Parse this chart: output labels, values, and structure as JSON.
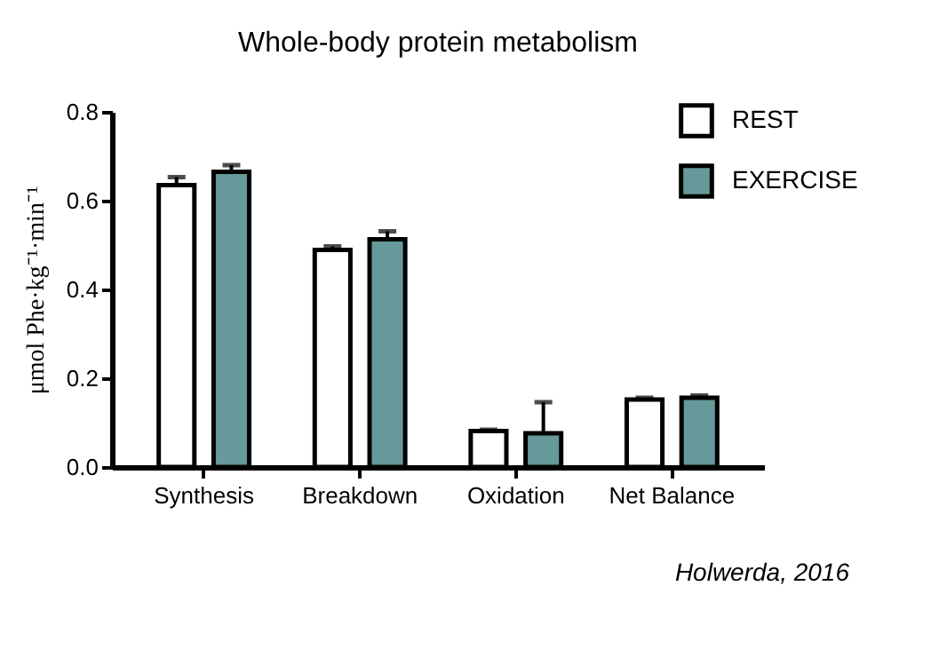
{
  "chart_data": {
    "type": "bar",
    "title": "Whole-body protein metabolism",
    "ylabel": "μmol Phe·kg⁻¹·min⁻¹",
    "categories": [
      "Synthesis",
      "Breakdown",
      "Oxidation",
      "Net Balance"
    ],
    "series": [
      {
        "name": "REST",
        "color": "#ffffff",
        "values": [
          0.635,
          0.489,
          0.081,
          0.152
        ],
        "errors": [
          0.018,
          0.008,
          0.003,
          0.004
        ]
      },
      {
        "name": "EXERCISE",
        "color": "#669999",
        "values": [
          0.665,
          0.513,
          0.076,
          0.156
        ],
        "errors": [
          0.015,
          0.018,
          0.07,
          0.005
        ]
      }
    ],
    "ylim": [
      0,
      0.8
    ],
    "yticks": [
      {
        "value": 0,
        "label": "0.0"
      },
      0.2,
      0.4,
      0.6,
      0.8
    ],
    "grid": false,
    "legend": "top right",
    "annotations": [
      "Holwerda, 2016"
    ]
  }
}
